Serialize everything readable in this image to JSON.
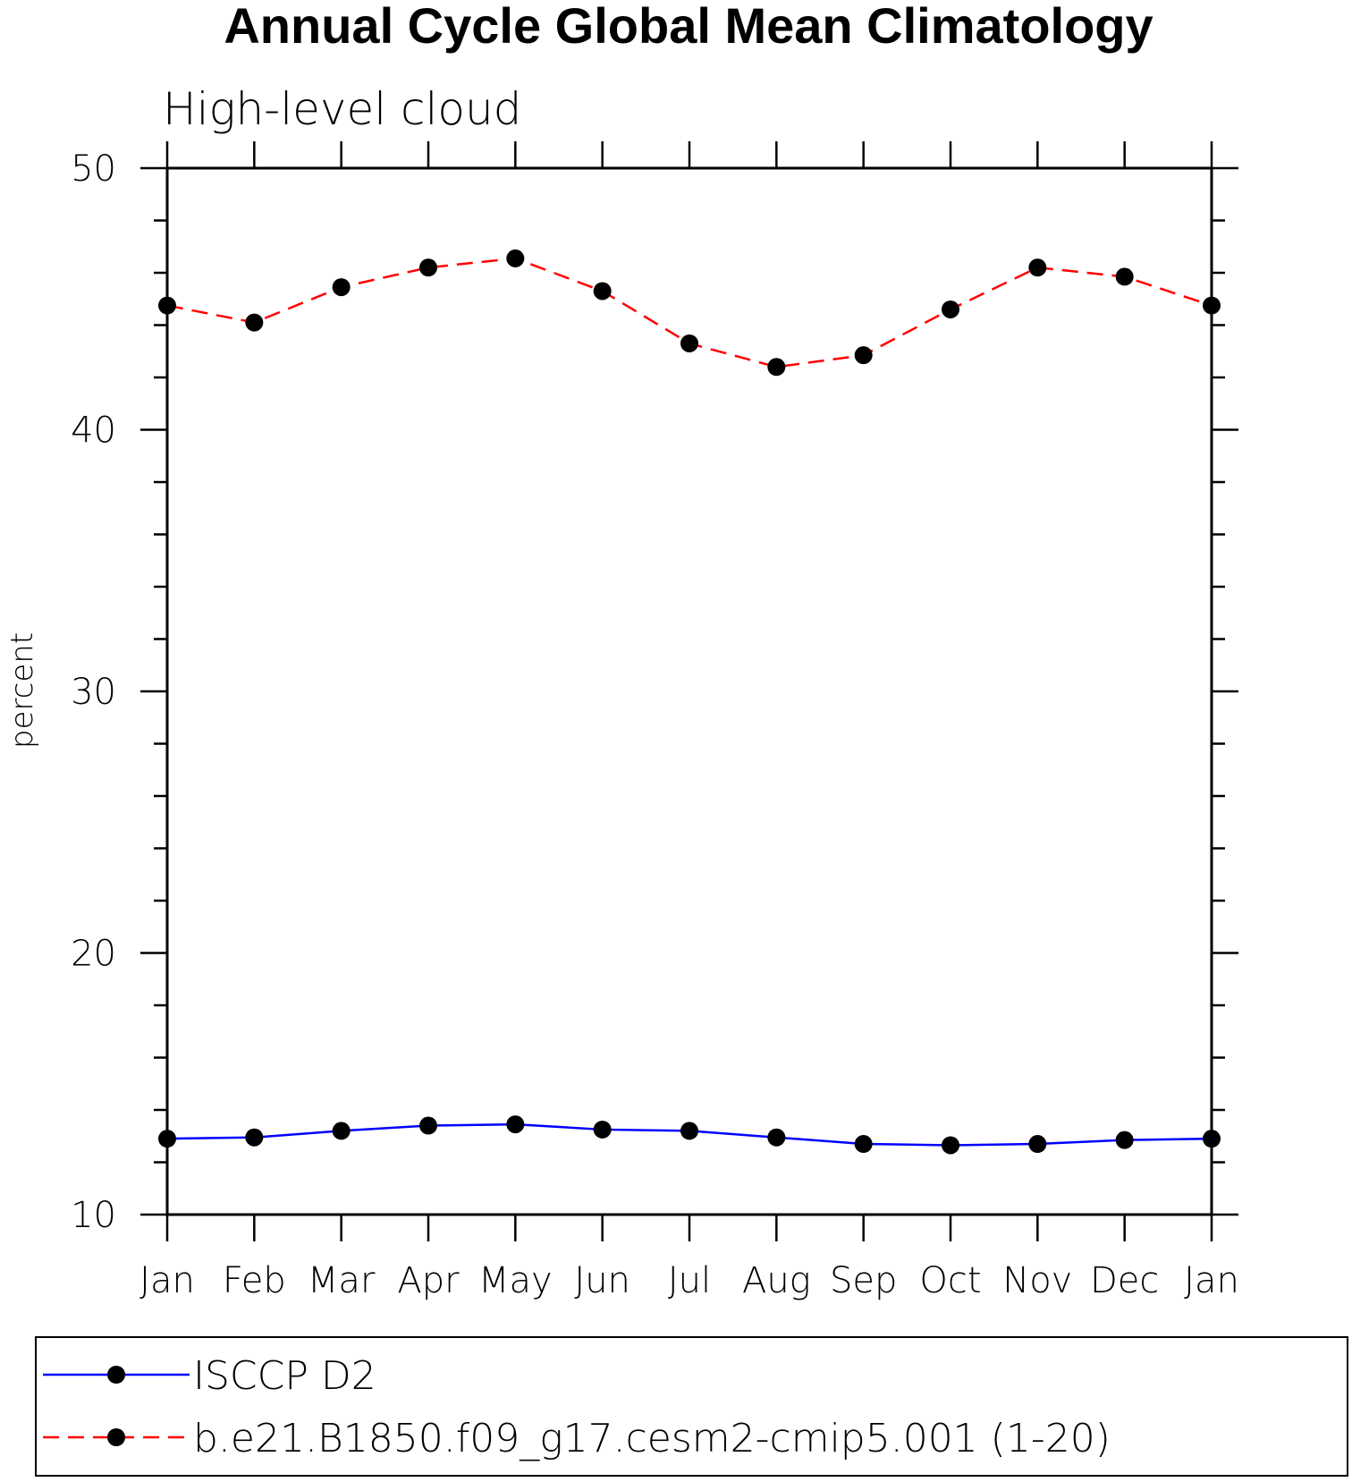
{
  "chart_data": {
    "type": "line",
    "title": "Annual Cycle Global Mean Climatology",
    "subtitle": "High-level cloud",
    "xlabel": "",
    "ylabel": "percent",
    "categories": [
      "Jan",
      "Feb",
      "Mar",
      "Apr",
      "May",
      "Jun",
      "Jul",
      "Aug",
      "Sep",
      "Oct",
      "Nov",
      "Dec",
      "Jan"
    ],
    "ylim": [
      10,
      50
    ],
    "yticks": [
      "10",
      "20",
      "30",
      "40",
      "50"
    ],
    "grid": false,
    "legend_position": "bottom",
    "series": [
      {
        "name": "ISCCP D2",
        "color": "#0000ff",
        "line_style": "solid",
        "marker": "filled-circle",
        "values": [
          12.9,
          12.95,
          13.2,
          13.4,
          13.45,
          13.25,
          13.2,
          12.95,
          12.7,
          12.65,
          12.7,
          12.85,
          12.9
        ]
      },
      {
        "name": "b.e21.B1850.f09_g17.cesm2-cmip5.001 (1-20)",
        "color": "#ff0000",
        "line_style": "dashed",
        "marker": "filled-circle",
        "values": [
          44.75,
          44.1,
          45.45,
          46.2,
          46.55,
          45.3,
          43.3,
          42.4,
          42.85,
          44.6,
          46.2,
          45.85,
          44.75
        ]
      }
    ]
  }
}
